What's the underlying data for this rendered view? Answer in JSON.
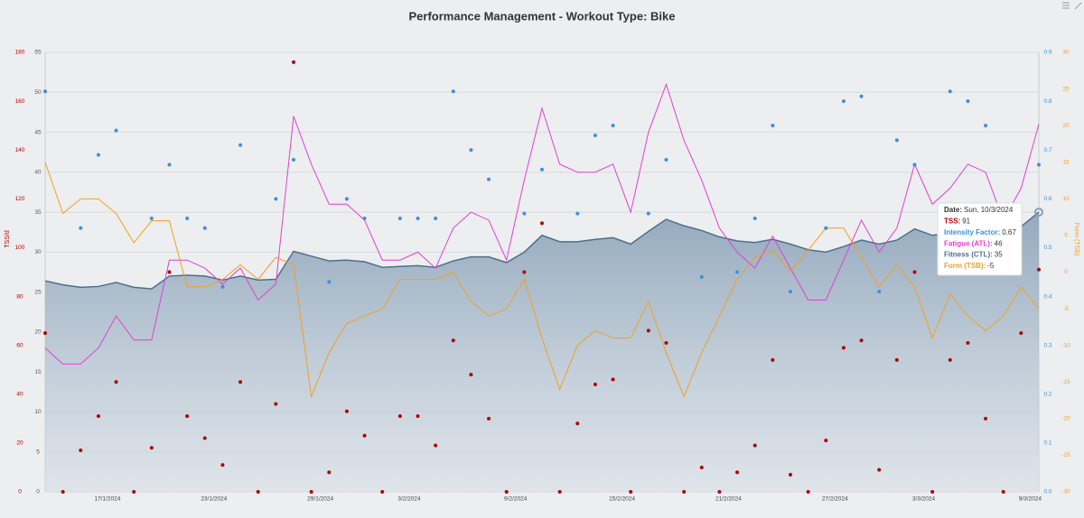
{
  "chart_data": {
    "type": "combo",
    "title": "Performance Management - Workout Type: Bike",
    "categories": [
      null,
      null,
      null,
      "17/1/2024",
      null,
      null,
      null,
      null,
      null,
      "23/1/2024",
      null,
      null,
      null,
      null,
      null,
      "29/1/2024",
      null,
      null,
      null,
      null,
      "3/2/2024",
      null,
      null,
      null,
      null,
      null,
      "9/2/2024",
      null,
      null,
      null,
      null,
      null,
      "15/2/2024",
      null,
      null,
      null,
      null,
      null,
      "21/2/2024",
      null,
      null,
      null,
      null,
      null,
      "27/2/2024",
      null,
      null,
      null,
      null,
      "3/3/2024",
      null,
      null,
      null,
      null,
      null,
      "9/3/2024",
      null
    ],
    "grid": true,
    "axes": [
      {
        "label": "TSS/d",
        "color": "#b30000",
        "side": "left",
        "lim": [
          0,
          180
        ],
        "ticks": [
          0,
          20,
          40,
          60,
          80,
          100,
          120,
          140,
          160,
          180
        ]
      },
      {
        "color": "#555555",
        "side": "left",
        "lim": [
          0,
          55
        ],
        "ticks": [
          0,
          5,
          10,
          15,
          20,
          25,
          30,
          35,
          40,
          45,
          50,
          55
        ]
      },
      {
        "color": "#3b8fe0",
        "side": "right",
        "lim": [
          0,
          0.9
        ],
        "ticks": [
          {
            "value": 0,
            "label": "0.0"
          },
          0.1,
          0.2,
          0.3,
          0.4,
          0.5,
          0.6,
          0.7,
          0.8,
          0.9
        ]
      },
      {
        "label": "Form (TSB)",
        "color": "#f0a020",
        "side": "right",
        "lim": [
          -30,
          30
        ],
        "ticks": [
          -30,
          -25,
          -20,
          -15,
          -10,
          -5,
          0,
          5,
          10,
          15,
          20,
          25,
          30
        ]
      }
    ],
    "series": [
      {
        "style": "dots",
        "axis": 0,
        "color": "#b30000",
        "values": [
          65,
          0,
          17,
          31,
          45,
          0,
          18,
          90,
          31,
          22,
          11,
          45,
          0,
          36,
          176,
          0,
          8,
          33,
          23,
          0,
          31,
          31,
          19,
          62,
          48,
          30,
          0,
          90,
          110,
          0,
          28,
          44,
          46,
          0,
          66,
          61,
          0,
          10,
          0,
          8,
          19,
          54,
          7,
          0,
          21,
          59,
          62,
          9,
          54,
          90,
          0,
          54,
          61,
          30,
          0,
          65,
          91
        ]
      },
      {
        "style": "dots",
        "axis": 2,
        "color": "#3b8fe0",
        "values": [
          0.82,
          null,
          0.54,
          0.69,
          0.74,
          null,
          0.56,
          0.67,
          0.56,
          0.54,
          0.42,
          0.71,
          null,
          0.6,
          0.68,
          null,
          0.43,
          0.6,
          0.56,
          null,
          0.56,
          0.56,
          0.56,
          0.82,
          0.7,
          0.64,
          null,
          0.57,
          0.66,
          null,
          0.57,
          0.73,
          0.75,
          null,
          0.57,
          0.68,
          null,
          0.44,
          null,
          0.45,
          0.56,
          0.75,
          0.41,
          null,
          0.54,
          0.8,
          0.81,
          0.41,
          0.72,
          0.67,
          null,
          0.82,
          0.8,
          0.75,
          null,
          null,
          0.67
        ]
      },
      {
        "style": "line",
        "axis": 1,
        "color": "#e040d0",
        "values": [
          18,
          16,
          16,
          18,
          22,
          19,
          19,
          29,
          29,
          28,
          26,
          28,
          24,
          26,
          47,
          41,
          36,
          36,
          34,
          29,
          29,
          30,
          28,
          33,
          35,
          34,
          29,
          39,
          48,
          41,
          40,
          40,
          41,
          35,
          45,
          51,
          44,
          39,
          33,
          30,
          28,
          32,
          28,
          24,
          24,
          29,
          34,
          30,
          33,
          41,
          36,
          38,
          41,
          40,
          34,
          38,
          46
        ]
      },
      {
        "style": "area",
        "axis": 1,
        "color": "#4f6f8c",
        "values": [
          26.4,
          25.9,
          25.6,
          25.7,
          26.2,
          25.6,
          25.4,
          27.0,
          27.1,
          27.0,
          26.5,
          27.0,
          26.5,
          26.6,
          30.1,
          29.5,
          28.9,
          29.0,
          28.8,
          28.1,
          28.2,
          28.3,
          28.1,
          28.9,
          29.4,
          29.4,
          28.7,
          30.0,
          32.1,
          31.3,
          31.3,
          31.6,
          31.8,
          31.0,
          32.6,
          34.1,
          33.3,
          32.7,
          31.9,
          31.4,
          31.2,
          31.6,
          31.0,
          30.3,
          30.0,
          30.7,
          31.5,
          31.0,
          31.5,
          32.9,
          32.1,
          32.4,
          33.0,
          32.9,
          32.4,
          33.2,
          35
        ]
      },
      {
        "style": "line",
        "axis": 3,
        "color": "#f0a020",
        "values": [
          15,
          8,
          10,
          10,
          8,
          4,
          7,
          7,
          -2,
          -2,
          -1,
          1,
          -1,
          2,
          1,
          -17,
          -11,
          -7,
          -6,
          -5,
          -1,
          -1,
          -1,
          0,
          -4,
          -6,
          -5,
          -1,
          -9,
          -16,
          -10,
          -8,
          -9,
          -9,
          -4,
          -11,
          -17,
          -11,
          -6,
          -1,
          2,
          3,
          0,
          3,
          6,
          6,
          2,
          -2,
          1,
          -2,
          -9,
          -3,
          -6,
          -8,
          -6,
          -2,
          -5
        ]
      }
    ],
    "tooltip": {
      "date_label": "Date:",
      "date": "Sun, 10/3/2024",
      "index": 56,
      "labels": [
        "TSS:",
        "Intensity Factor:",
        "Fatigue (ATL):",
        "Fitness (CTL):",
        "Form (TSB):"
      ]
    }
  }
}
